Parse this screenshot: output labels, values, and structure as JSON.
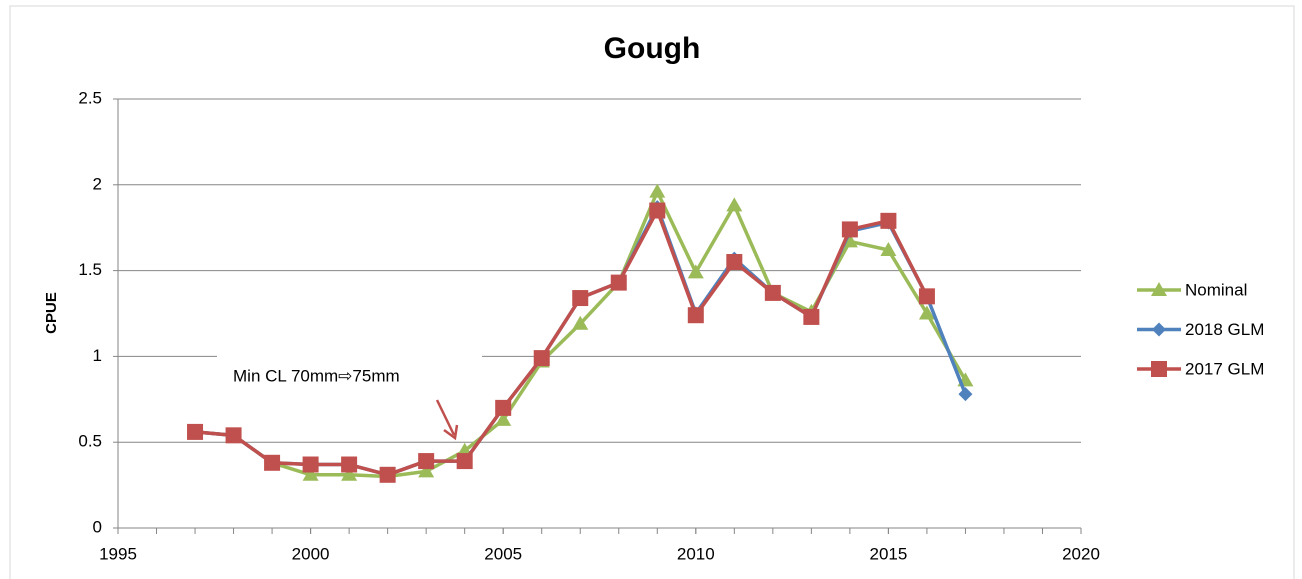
{
  "chart_data": {
    "type": "line",
    "title": "Gough",
    "y_label": "CPUE",
    "x": [
      1997,
      1998,
      1999,
      2000,
      2001,
      2002,
      2003,
      2004,
      2005,
      2006,
      2007,
      2008,
      2009,
      2010,
      2011,
      2012,
      2013,
      2014,
      2015,
      2016,
      2017
    ],
    "series": [
      {
        "name": "Nominal",
        "color": "#9bbb59",
        "marker": "triangle",
        "values": [
          0.56,
          0.54,
          0.38,
          0.31,
          0.31,
          0.3,
          0.33,
          0.45,
          0.63,
          0.97,
          1.19,
          1.43,
          1.96,
          1.49,
          1.88,
          1.37,
          1.26,
          1.67,
          1.62,
          1.25,
          0.86
        ]
      },
      {
        "name": "2018 GLM",
        "color": "#4f81bd",
        "marker": "diamond",
        "values": [
          0.56,
          0.54,
          0.38,
          0.37,
          0.37,
          0.31,
          0.39,
          0.39,
          0.7,
          0.99,
          1.34,
          1.43,
          1.87,
          1.25,
          1.57,
          1.37,
          1.23,
          1.73,
          1.78,
          1.35,
          0.78
        ]
      },
      {
        "name": "2017 GLM",
        "color": "#c0504d",
        "marker": "square",
        "values": [
          0.56,
          0.54,
          0.38,
          0.37,
          0.37,
          0.31,
          0.39,
          0.39,
          0.7,
          0.99,
          1.34,
          1.43,
          1.85,
          1.24,
          1.55,
          1.37,
          1.23,
          1.74,
          1.79,
          1.35,
          null
        ]
      }
    ],
    "xlim": [
      1995,
      2020
    ],
    "xticks": [
      1995,
      2000,
      2005,
      2010,
      2015,
      2020
    ],
    "ylim": [
      0,
      2.5
    ],
    "yticks": [
      0,
      0.5,
      1,
      1.5,
      2,
      2.5
    ],
    "grid": true,
    "legend": "right",
    "annotation": "Min CL 70mm⇨75mm"
  }
}
